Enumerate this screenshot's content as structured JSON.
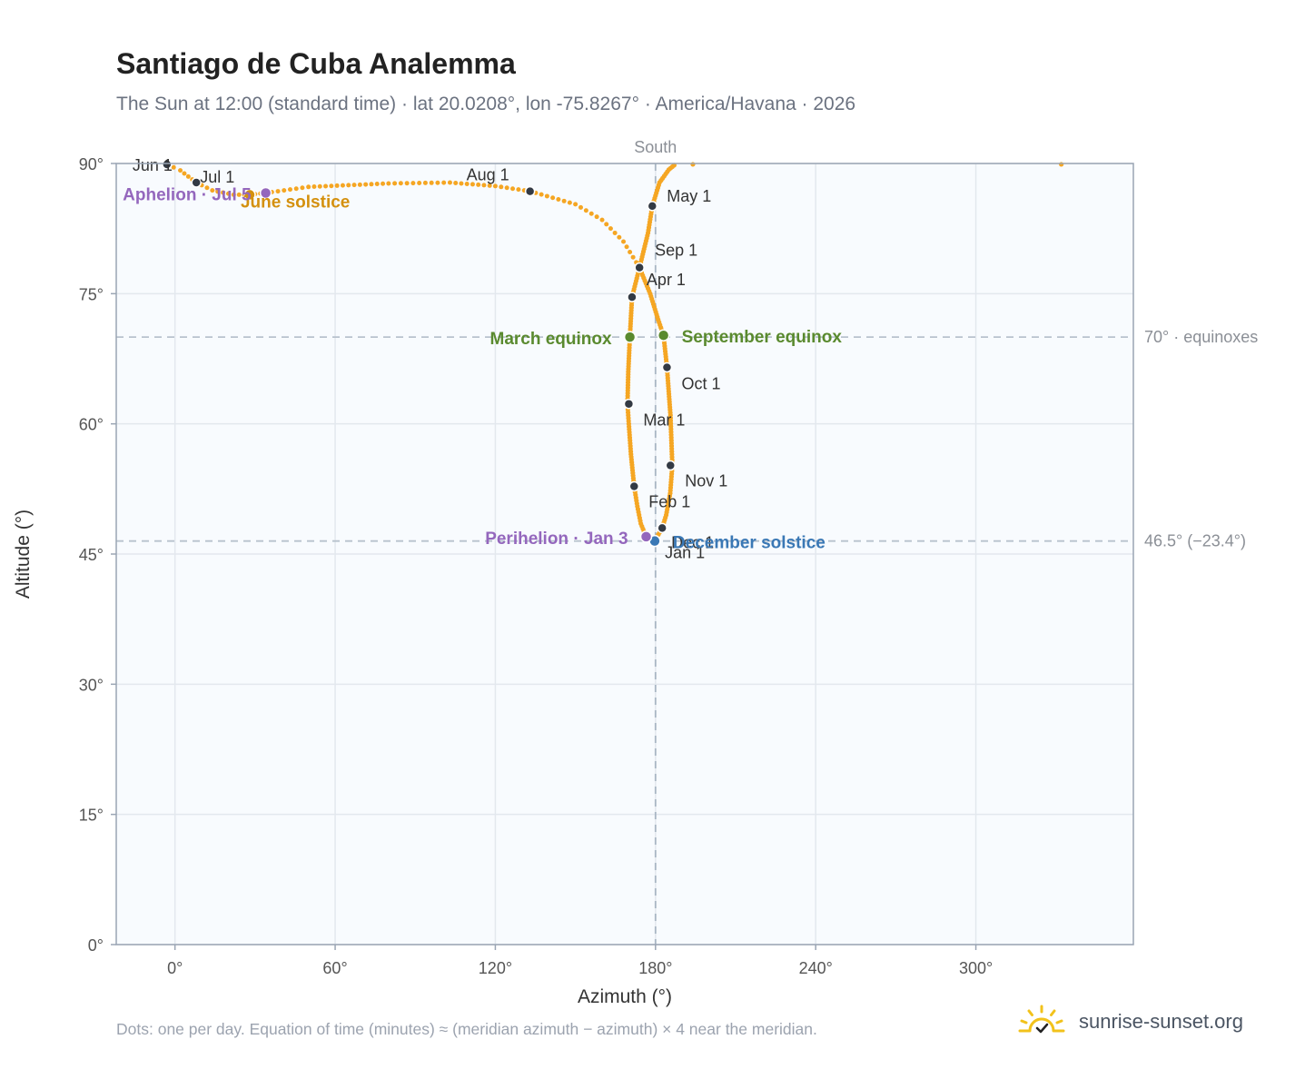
{
  "title": "Santiago de Cuba Analemma",
  "subtitle": "The Sun at 12:00 (standard time) · lat 20.0208°, lon -75.8267° · America/Havana · 2026",
  "footnote": "Dots: one per day. Equation of time (minutes) ≈ (meridian azimuth − azimuth) × 4 near the meridian.",
  "brand": "sunrise-sunset.org",
  "colors": {
    "curve": "#f5a623",
    "month_dot": "#333a44",
    "equinox": "#5a8a2f",
    "june_solstice": "#d4900e",
    "december_solstice": "#3a78b5",
    "apsis": "#9467bd",
    "plot_bg": "#f8fbfe",
    "grid": "#e3e8ee",
    "frame": "#9aa5b4"
  },
  "icons": [
    "sun-logo-icon"
  ],
  "chart_data": {
    "type": "scatter",
    "title": "Santiago de Cuba Analemma",
    "xlabel": "Azimuth (°)",
    "ylabel": "Altitude (°)",
    "xlim": [
      -22,
      359
    ],
    "ylim": [
      0,
      90
    ],
    "x_ticks": [
      0,
      60,
      120,
      180,
      240,
      300
    ],
    "x_tick_labels": [
      "0°",
      "60°",
      "120°",
      "180°",
      "240°",
      "300°"
    ],
    "y_ticks": [
      0,
      15,
      30,
      45,
      60,
      75,
      90
    ],
    "y_tick_labels": [
      "0°",
      "15°",
      "30°",
      "45°",
      "60°",
      "75°",
      "90°"
    ],
    "grid": true,
    "meridian": {
      "azimuth": 180,
      "label": "South"
    },
    "reference_lines": [
      {
        "altitude": 70.0,
        "label": "70° · equinoxes"
      },
      {
        "altitude": 46.5,
        "label": "46.5° (−23.4°)"
      }
    ],
    "analemma_path": [
      [
        178.6,
        46.5
      ],
      [
        176.5,
        47.0
      ],
      [
        174.5,
        48.5
      ],
      [
        173.2,
        50.5
      ],
      [
        172.0,
        52.8
      ],
      [
        170.8,
        56.5
      ],
      [
        170.0,
        60.0
      ],
      [
        169.5,
        62.3
      ],
      [
        169.8,
        66.0
      ],
      [
        170.4,
        70.0
      ],
      [
        171.2,
        74.6
      ],
      [
        174.0,
        78.0
      ],
      [
        177.2,
        82.0
      ],
      [
        178.8,
        85.1
      ],
      [
        181.5,
        87.8
      ],
      [
        185.0,
        89.3
      ],
      [
        187.0,
        89.8
      ]
    ],
    "june_branch": [
      [
        -3.0,
        89.9
      ],
      [
        2.0,
        89.2
      ],
      [
        5.0,
        88.5
      ],
      [
        8.0,
        87.8
      ],
      [
        14.0,
        86.9
      ],
      [
        22.0,
        86.4
      ],
      [
        28.0,
        86.4
      ],
      [
        34.0,
        86.6
      ],
      [
        50.0,
        87.3
      ],
      [
        80.0,
        87.7
      ],
      [
        103.0,
        87.8
      ],
      [
        120.0,
        87.4
      ],
      [
        133.0,
        86.8
      ],
      [
        150.0,
        85.3
      ],
      [
        160.0,
        83.5
      ],
      [
        168.0,
        81.0
      ],
      [
        174.0,
        78.0
      ]
    ],
    "autumn_branch": [
      [
        174.0,
        78.0
      ],
      [
        178.0,
        75.0
      ],
      [
        181.0,
        72.0
      ],
      [
        183.0,
        70.2
      ],
      [
        184.3,
        66.5
      ],
      [
        185.6,
        61.0
      ],
      [
        186.3,
        55.2
      ],
      [
        185.5,
        52.0
      ],
      [
        184.0,
        49.5
      ],
      [
        182.5,
        48.0
      ],
      [
        180.6,
        47.0
      ],
      [
        178.6,
        46.5
      ]
    ],
    "stray_points": [
      [
        194.0,
        89.9
      ],
      [
        332.0,
        89.9
      ]
    ],
    "month_markers": [
      {
        "label": "Jan 1",
        "az": 180.1,
        "alt": 46.5
      },
      {
        "label": "Feb 1",
        "az": 172.0,
        "alt": 52.8
      },
      {
        "label": "Mar 1",
        "az": 170.0,
        "alt": 62.3
      },
      {
        "label": "Apr 1",
        "az": 171.2,
        "alt": 74.6
      },
      {
        "label": "May 1",
        "az": 178.8,
        "alt": 85.1
      },
      {
        "label": "Jun 1",
        "az": -3.0,
        "alt": 89.9
      },
      {
        "label": "Jul 1",
        "az": 8.0,
        "alt": 87.8
      },
      {
        "label": "Aug 1",
        "az": 133.0,
        "alt": 86.8
      },
      {
        "label": "Sep 1",
        "az": 174.0,
        "alt": 78.0
      },
      {
        "label": "Oct 1",
        "az": 184.3,
        "alt": 66.5
      },
      {
        "label": "Nov 1",
        "az": 185.6,
        "alt": 55.2
      },
      {
        "label": "Dec 1",
        "az": 182.5,
        "alt": 48.0
      }
    ],
    "events": [
      {
        "label": "March equinox",
        "az": 170.4,
        "alt": 70.0,
        "kind": "equinox"
      },
      {
        "label": "September equinox",
        "az": 183.0,
        "alt": 70.2,
        "kind": "equinox"
      },
      {
        "label": "June solstice",
        "az": 28.0,
        "alt": 86.4,
        "kind": "june_solstice"
      },
      {
        "label": "December solstice",
        "az": 179.7,
        "alt": 46.5,
        "kind": "december_solstice"
      },
      {
        "label": "Aphelion · Jul 5",
        "az": 34.0,
        "alt": 86.6,
        "kind": "apsis"
      },
      {
        "label": "Perihelion · Jan 3",
        "az": 176.5,
        "alt": 47.0,
        "kind": "apsis"
      }
    ]
  }
}
